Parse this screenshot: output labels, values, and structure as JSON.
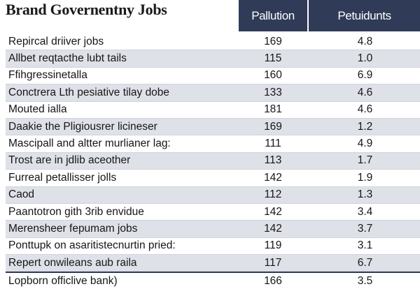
{
  "chart_data": {
    "type": "table",
    "title": "Brand Governentny Jobs",
    "columns": [
      "",
      "Pallution",
      "Petuidunts"
    ],
    "rows": [
      {
        "label": "Repircal driiver jobs",
        "values": [
          "169",
          "4.8"
        ]
      },
      {
        "label": "Allbet reqtacthe lubt tails",
        "values": [
          "115",
          "1.0"
        ]
      },
      {
        "label": "Ffihgressinetalla",
        "values": [
          "160",
          "6.9"
        ]
      },
      {
        "label": "Conctrera Lth pesiative tilay dobe",
        "values": [
          "133",
          "4.6"
        ]
      },
      {
        "label": "Mouted ialla",
        "values": [
          "181",
          "4.6"
        ]
      },
      {
        "label": "Daakie the Pligiousrer licineser",
        "values": [
          "169",
          "1.2"
        ]
      },
      {
        "label": "Mascipall and altter murlianer lag:",
        "values": [
          "111",
          "4.9"
        ]
      },
      {
        "label": "Trost are in jdlib aceother",
        "values": [
          "113",
          "1.7"
        ]
      },
      {
        "label": "Furreal petallisser jolls",
        "values": [
          "142",
          "1.9"
        ]
      },
      {
        "label": "Caod",
        "values": [
          "112",
          "1.3"
        ]
      },
      {
        "label": "Paantotron gith 3rib envidue",
        "values": [
          "142",
          "3.4"
        ]
      },
      {
        "label": "Merensheer fepumam jobs",
        "values": [
          "142",
          "3.7"
        ]
      },
      {
        "label": "Ponttupk on asaritistecnurtin pried:",
        "values": [
          "119",
          "3.1"
        ]
      },
      {
        "label": "Repert onwileans aub raila",
        "values": [
          "117",
          "6.7"
        ]
      },
      {
        "label": "Lopborn officlive bank)",
        "values": [
          "166",
          "3.5"
        ]
      }
    ]
  }
}
